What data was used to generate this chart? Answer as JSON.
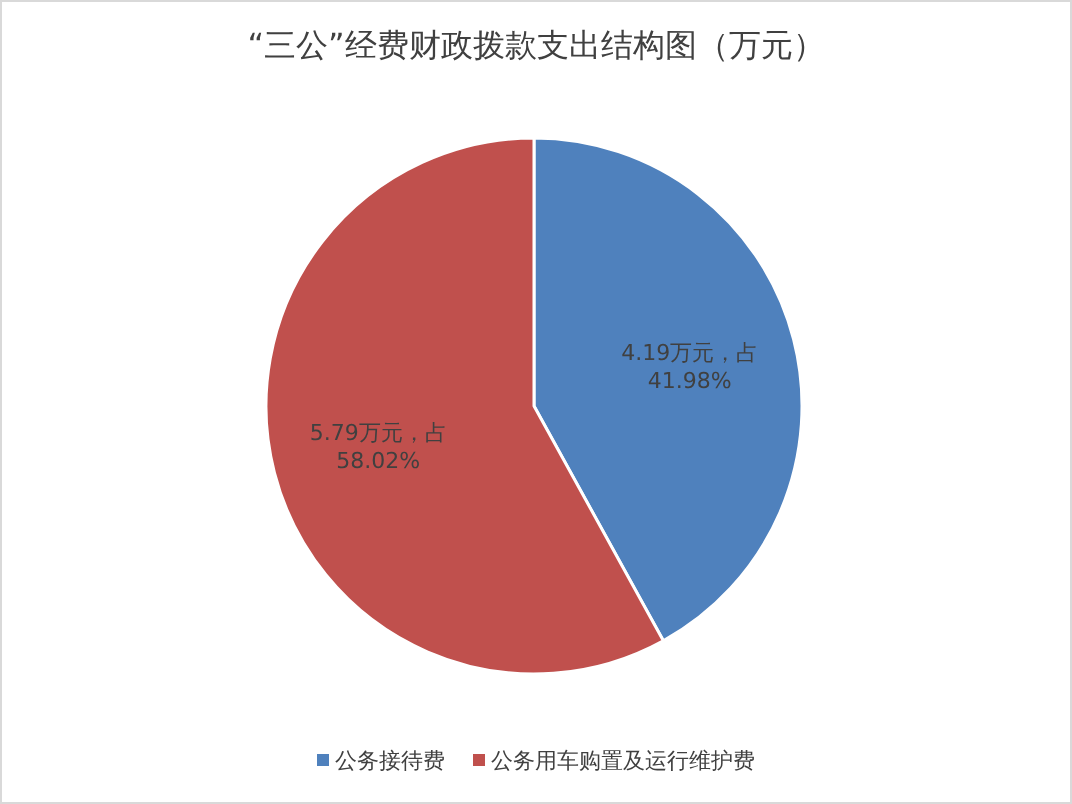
{
  "chart_data": {
    "type": "pie",
    "title": "“三公”经费财政拨款支出结构图（万元）",
    "categories": [
      "公务接待费",
      "公务用车购置及运行维护费"
    ],
    "values": [
      4.19,
      5.79
    ],
    "colors": [
      "#4f81bd",
      "#c0504d"
    ],
    "value_labels": [
      "4.19万元，占\n41.98%",
      "5.79万元，占\n58.02%"
    ],
    "legend": "bottom"
  }
}
